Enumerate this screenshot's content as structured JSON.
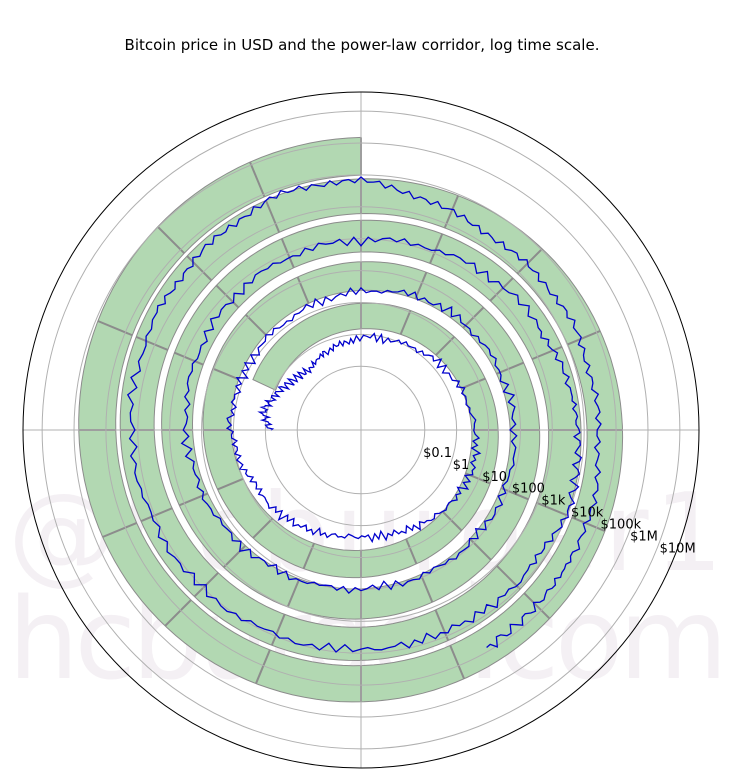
{
  "chart_data": {
    "type": "polar-line",
    "title": "Bitcoin price in USD and the power-law corridor, log time scale.",
    "radial_tick_labels": [
      "$0.1",
      "$1",
      "$10",
      "$100",
      "$1k",
      "$10k",
      "$100k",
      "$1M",
      "$10M"
    ],
    "radial_tick_values": [
      0.1,
      1,
      10,
      100,
      1000,
      10000,
      100000,
      1000000,
      10000000
    ],
    "grid": true,
    "series": [
      {
        "role": "corridor band",
        "color": "#b2d8b2",
        "edge_color": "#8c8c8c",
        "theta_range_deg": [
          -65,
          1440
        ],
        "r_inner": [
          0.9,
          98000
        ],
        "r_outer": [
          5.5,
          1500000
        ]
      },
      {
        "role": "price",
        "color": "#0000cc",
        "points": [
          [
            -90,
            0.8
          ],
          [
            -80,
            1.2
          ],
          [
            -70,
            0.9
          ],
          [
            -55,
            0.45
          ],
          [
            -40,
            0.3
          ],
          [
            -25,
            0.5
          ],
          [
            -5,
            0.75
          ],
          [
            25,
            1.0
          ],
          [
            55,
            1.8
          ],
          [
            85,
            3.5
          ],
          [
            110,
            5.2
          ],
          [
            135,
            4.0
          ],
          [
            160,
            2.6
          ],
          [
            185,
            2.2
          ],
          [
            210,
            3.5
          ],
          [
            235,
            5.5
          ],
          [
            255,
            8.0
          ],
          [
            275,
            12
          ],
          [
            300,
            12
          ],
          [
            330,
            14
          ],
          [
            360,
            22
          ],
          [
            390,
            40
          ],
          [
            420,
            50
          ],
          [
            450,
            65
          ],
          [
            480,
            80
          ],
          [
            510,
            88
          ],
          [
            540,
            95
          ],
          [
            570,
            130
          ],
          [
            600,
            200
          ],
          [
            630,
            310
          ],
          [
            660,
            480
          ],
          [
            690,
            700
          ],
          [
            720,
            900
          ],
          [
            750,
            1500
          ],
          [
            780,
            3000
          ],
          [
            800,
            5000
          ],
          [
            815,
            7000
          ],
          [
            830,
            9000
          ],
          [
            850,
            7500
          ],
          [
            875,
            7000
          ],
          [
            900,
            7800
          ],
          [
            930,
            9500
          ],
          [
            960,
            12000
          ],
          [
            990,
            16000
          ],
          [
            1020,
            22000
          ],
          [
            1040,
            35000
          ],
          [
            1060,
            58000
          ],
          [
            1080,
            60000
          ],
          [
            1100,
            30000
          ],
          [
            1120,
            20000
          ],
          [
            1140,
            23000
          ],
          [
            1160,
            28000
          ],
          [
            1180,
            35000
          ],
          [
            1200,
            50000
          ],
          [
            1215,
            60000
          ],
          [
            1230,
            75000
          ]
        ]
      }
    ],
    "axes": {
      "orientation": "clockwise, zero at top"
    }
  },
  "watermark": {
    "line1": "@hcburger1",
    "line2": "hcburger.com"
  }
}
